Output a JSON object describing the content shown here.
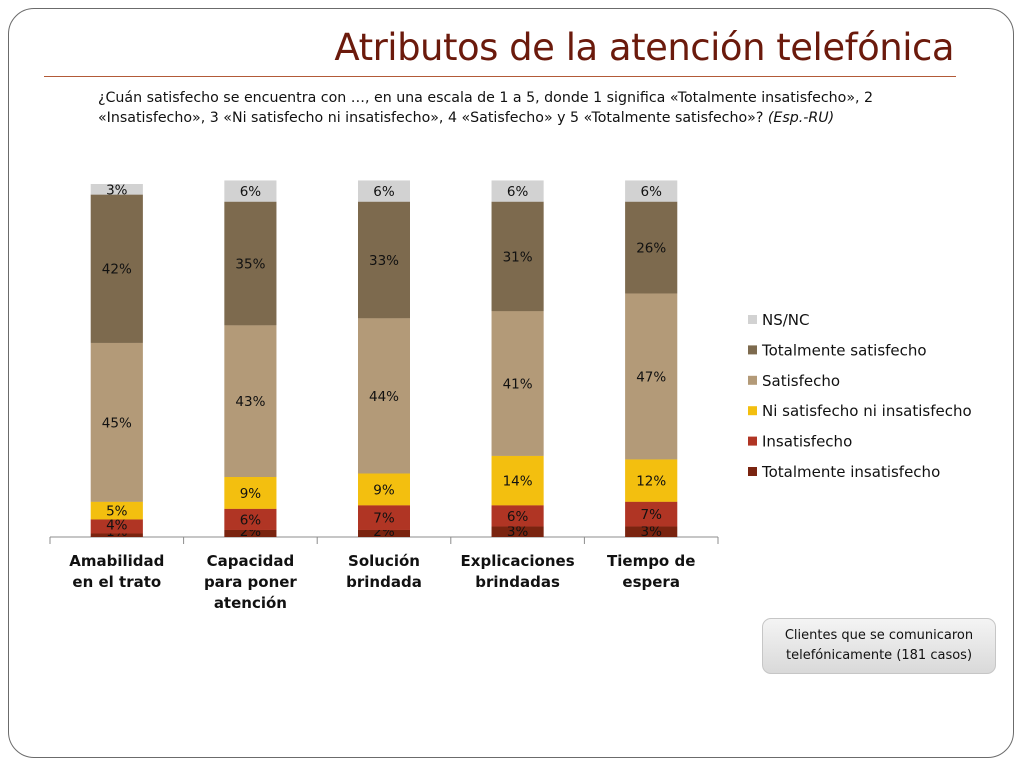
{
  "slide": {
    "title": "Atributos de la atención telefónica",
    "question_text": "¿Cuán satisfecho se encuentra con …, en una escala de 1 a 5, donde 1 significa «Totalmente insatisfecho», 2 «Insatisfecho», 3 «Ni satisfecho ni insatisfecho», 4 «Satisfecho» y 5 «Totalmente satisfecho»?",
    "question_tag": "(Esp.-RU)",
    "note": "Clientes que se comunicaron telefónicamente (181 casos)"
  },
  "chart_data": {
    "type": "bar",
    "stacked": true,
    "ylim": [
      0,
      100
    ],
    "grid": false,
    "legend_position": "right",
    "categories": [
      [
        "Amabilidad",
        "en el trato"
      ],
      [
        "Capacidad",
        "para poner",
        "atención"
      ],
      [
        "Solución",
        "brindada"
      ],
      [
        "Explicaciones",
        "brindadas"
      ],
      [
        "Tiempo de",
        "espera"
      ]
    ],
    "series": [
      {
        "name": "Totalmente insatisfecho",
        "color": "#7a2410",
        "values": [
          1,
          2,
          2,
          3,
          3
        ]
      },
      {
        "name": "Insatisfecho",
        "color": "#b03524",
        "values": [
          4,
          6,
          7,
          6,
          7
        ]
      },
      {
        "name": "Ni satisfecho ni insatisfecho",
        "color": "#f3bf0f",
        "values": [
          5,
          9,
          9,
          14,
          12
        ]
      },
      {
        "name": "Satisfecho",
        "color": "#b39a78",
        "values": [
          45,
          43,
          44,
          41,
          47
        ]
      },
      {
        "name": "Totalmente satisfecho",
        "color": "#7d6a4e",
        "values": [
          42,
          35,
          33,
          31,
          26
        ]
      },
      {
        "name": "NS/NC",
        "color": "#d2d2d2",
        "values": [
          3,
          6,
          6,
          6,
          6
        ]
      }
    ],
    "data_labels": [
      [
        "1%",
        "4%",
        "5%",
        "45%",
        "42%",
        "3%"
      ],
      [
        "2%",
        "6%",
        "9%",
        "43%",
        "35%",
        "6%"
      ],
      [
        "2%",
        "7%",
        "9%",
        "44%",
        "33%",
        "6%"
      ],
      [
        "3%",
        "6%",
        "14%",
        "41%",
        "31%",
        "6%"
      ],
      [
        "3%",
        "7%",
        "12%",
        "47%",
        "26%",
        "6%"
      ]
    ],
    "legend_order": [
      "NS/NC",
      "Totalmente satisfecho",
      "Satisfecho",
      "Ni satisfecho ni insatisfecho",
      "Insatisfecho",
      "Totalmente insatisfecho"
    ]
  }
}
